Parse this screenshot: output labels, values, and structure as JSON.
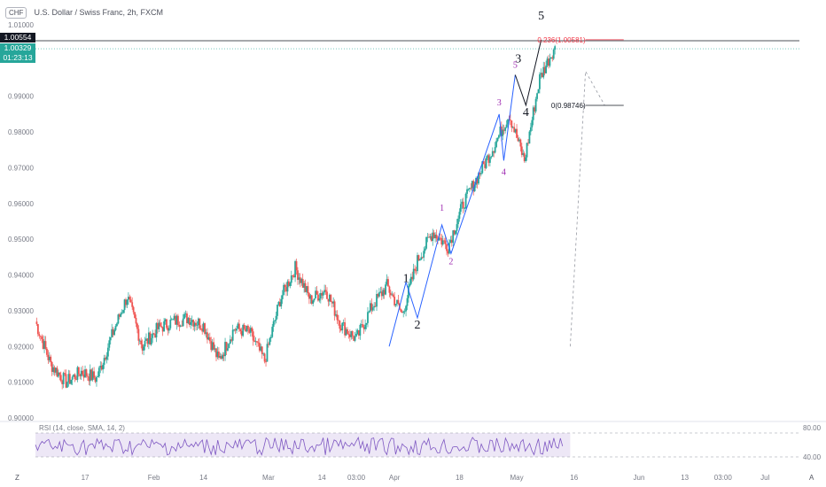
{
  "header": {
    "symbol_badge": "CHF",
    "title": "U.S. Dollar / Swiss Franc, 2h, FXCM"
  },
  "price_tags": {
    "high_line": "1.00554",
    "current": "1.00329",
    "countdown": "01:23:13"
  },
  "colors": {
    "up": "#26a69a",
    "down": "#ef5350",
    "wave_line": "#2962ff",
    "wave_label_major": "#131722",
    "wave_label_minor": "#9c27b0",
    "fib_level": "#f23645",
    "rsi_line": "#7e57c2",
    "rsi_band": "#ede7f6",
    "current_tag": "#26a69a",
    "high_tag": "#131722"
  },
  "chart_data": {
    "type": "line",
    "title": "U.S. Dollar / Swiss Franc, 2h, FXCM",
    "xlabel": "",
    "ylabel": "",
    "ylim": [
      0.9,
      1.01
    ],
    "y_ticks": [
      "1.01000",
      "0.99000",
      "0.98000",
      "0.97000",
      "0.96000",
      "0.95000",
      "0.94000",
      "0.93000",
      "0.92000",
      "0.91000",
      "0.90000"
    ],
    "x_ticks": [
      "17",
      "Feb",
      "14",
      "Mar",
      "14",
      "03:00",
      "Apr",
      "18",
      "May",
      "16",
      "Jun",
      "13",
      "03:00",
      "Jul"
    ],
    "x_tick_positions": [
      0.065,
      0.155,
      0.22,
      0.305,
      0.375,
      0.42,
      0.47,
      0.555,
      0.63,
      0.705,
      0.79,
      0.85,
      0.9,
      0.955
    ],
    "series": [
      {
        "name": "price",
        "x": [
          0.0,
          0.02,
          0.04,
          0.06,
          0.08,
          0.1,
          0.12,
          0.14,
          0.16,
          0.18,
          0.2,
          0.22,
          0.24,
          0.26,
          0.28,
          0.3,
          0.32,
          0.34,
          0.36,
          0.38,
          0.4,
          0.42,
          0.44,
          0.46,
          0.48,
          0.5,
          0.52,
          0.54,
          0.56,
          0.58,
          0.6,
          0.62,
          0.64,
          0.66,
          0.68
        ],
        "values": [
          0.927,
          0.915,
          0.91,
          0.913,
          0.911,
          0.923,
          0.934,
          0.92,
          0.925,
          0.927,
          0.928,
          0.926,
          0.916,
          0.925,
          0.924,
          0.916,
          0.933,
          0.942,
          0.933,
          0.936,
          0.926,
          0.922,
          0.931,
          0.937,
          0.929,
          0.944,
          0.952,
          0.948,
          0.96,
          0.968,
          0.976,
          0.985,
          0.972,
          0.995,
          1.004
        ]
      }
    ],
    "wave_labels": [
      {
        "label": "1",
        "x": 0.485,
        "y": 0.938,
        "kind": "major"
      },
      {
        "label": "2",
        "x": 0.5,
        "y": 0.925,
        "kind": "major"
      },
      {
        "label": "3",
        "x": 0.632,
        "y": 0.9995,
        "kind": "major"
      },
      {
        "label": "4",
        "x": 0.642,
        "y": 0.9845,
        "kind": "major"
      },
      {
        "label": "5",
        "x": 0.662,
        "y": 1.0115,
        "kind": "major"
      },
      {
        "label": "1",
        "x": 0.532,
        "y": 0.958,
        "kind": "minor"
      },
      {
        "label": "2",
        "x": 0.544,
        "y": 0.943,
        "kind": "minor"
      },
      {
        "label": "3",
        "x": 0.607,
        "y": 0.9875,
        "kind": "minor"
      },
      {
        "label": "4",
        "x": 0.613,
        "y": 0.968,
        "kind": "minor"
      },
      {
        "label": "5",
        "x": 0.628,
        "y": 0.998,
        "kind": "minor"
      }
    ],
    "fib_levels": [
      {
        "label": "0.236(1.00581)",
        "value": 1.00581
      },
      {
        "label": "0(0.98746)",
        "value": 0.98746
      }
    ],
    "rsi": {
      "label": "RSI (14, close, SMA, 14, 2)",
      "upper": "80.00",
      "lower": "40.00"
    },
    "grid": true
  },
  "controls": {
    "zoom_icon": "Z",
    "auto_label": "A"
  }
}
